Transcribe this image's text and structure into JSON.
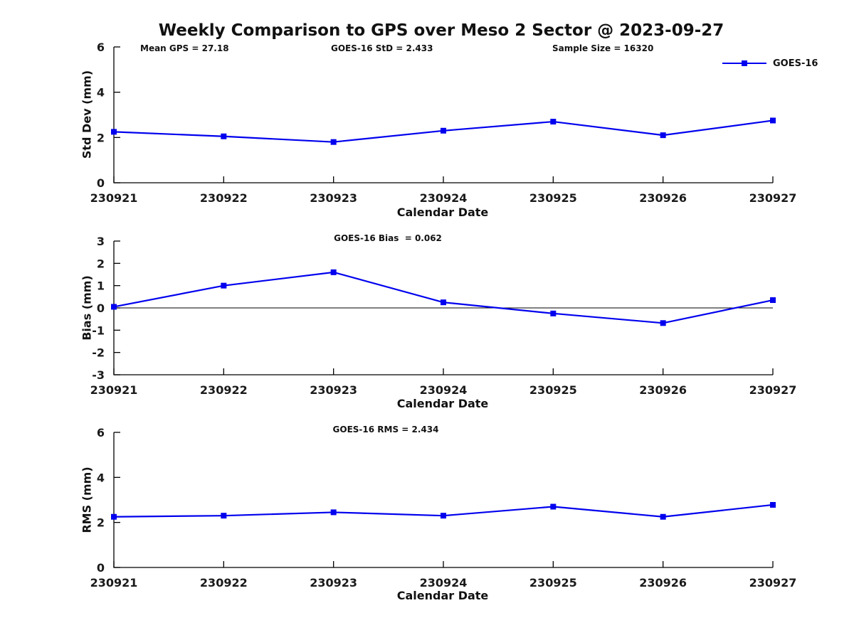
{
  "figure_title": "Weekly Comparison to GPS over Meso 2 Sector @ 2023-09-27",
  "legend": {
    "label": "GOES-16"
  },
  "colors": {
    "series": "#0000EE",
    "axis": "#000000",
    "text": "#1a1a1a"
  },
  "chart_data": [
    {
      "type": "line",
      "name": "std-dev",
      "annotations": [
        "Mean GPS = 27.18",
        "GOES-16 StD = 2.433",
        "Sample Size = 16320"
      ],
      "ylabel": "Std Dev (mm)",
      "xlabel": "Calendar Date",
      "categories": [
        "230921",
        "230922",
        "230923",
        "230924",
        "230925",
        "230926",
        "230927"
      ],
      "ylim": [
        0,
        6
      ],
      "yticks": [
        0,
        2,
        4,
        6
      ],
      "grid": false,
      "legend_position": "top-right",
      "series": [
        {
          "name": "GOES-16",
          "values": [
            2.25,
            2.05,
            1.8,
            2.3,
            2.7,
            2.1,
            2.75
          ]
        }
      ]
    },
    {
      "type": "line",
      "name": "bias",
      "title": "GOES-16 Bias  = 0.062",
      "ylabel": "Bias (mm)",
      "xlabel": "Calendar Date",
      "categories": [
        "230921",
        "230922",
        "230923",
        "230924",
        "230925",
        "230926",
        "230927"
      ],
      "ylim": [
        -3,
        3
      ],
      "yticks": [
        -3,
        -2,
        -1,
        0,
        1,
        2,
        3
      ],
      "grid": false,
      "zero_line": true,
      "series": [
        {
          "name": "GOES-16",
          "values": [
            0.05,
            1.0,
            1.6,
            0.25,
            -0.25,
            -0.68,
            0.35
          ]
        }
      ]
    },
    {
      "type": "line",
      "name": "rms",
      "title": "GOES-16 RMS = 2.434",
      "ylabel": "RMS (mm)",
      "xlabel": "Calendar Date",
      "categories": [
        "230921",
        "230922",
        "230923",
        "230924",
        "230925",
        "230926",
        "230927"
      ],
      "ylim": [
        0,
        6
      ],
      "yticks": [
        0,
        2,
        4,
        6
      ],
      "grid": false,
      "series": [
        {
          "name": "GOES-16",
          "values": [
            2.25,
            2.3,
            2.45,
            2.3,
            2.7,
            2.25,
            2.78
          ]
        }
      ]
    }
  ]
}
